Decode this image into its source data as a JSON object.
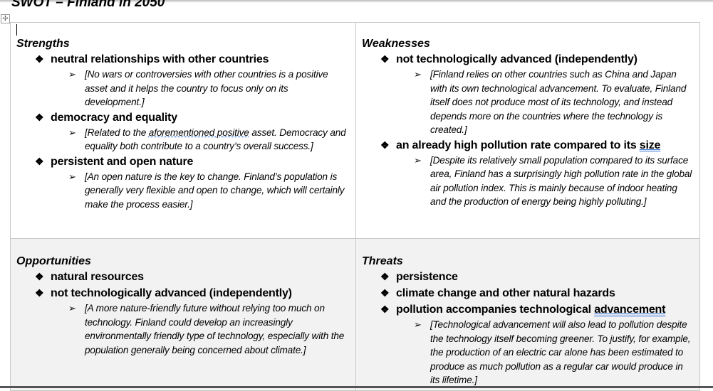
{
  "document": {
    "title": "SWOT – Finland in 2050"
  },
  "icons": {
    "bullet": "four-diamond-bullet",
    "sub_bullet": "arrowhead-bullet",
    "table_move": "move-handle-icon"
  },
  "swot": [
    {
      "heading": "Strengths",
      "items": [
        {
          "label": "neutral relationships with other countries",
          "details": [
            "[No wars or controversies with other countries is a positive asset and it helps the country to focus only on its development.]"
          ]
        },
        {
          "label": "democracy and equality",
          "details_parts": [
            "[Related to the ",
            "aforementioned positive",
            " asset. Democracy and equality both contribute to a country’s overall success.]"
          ]
        },
        {
          "label": "persistent and open nature",
          "details": [
            "[An open nature is the key to change. Finland’s population is generally very flexible and open to change, which will certainly make the process easier.]"
          ]
        }
      ]
    },
    {
      "heading": "Weaknesses",
      "items": [
        {
          "label": "not technologically advanced (independently)",
          "details": [
            "[Finland relies on other countries such as China and Japan with its own technological advancement. To evaluate, Finland itself does not produce most of its technology, and instead depends more on the countries where the technology is created.]"
          ]
        },
        {
          "label_parts": [
            "an already high pollution rate compared to its ",
            "size"
          ],
          "details": [
            "[Despite its relatively small population compared to its surface area, Finland has a surprisingly high pollution rate in the global air pollution index. This is mainly because of indoor heating and the production of energy being highly polluting.]"
          ]
        }
      ]
    },
    {
      "heading": "Opportunities",
      "items": [
        {
          "label": "natural resources"
        },
        {
          "label": "not technologically advanced (independently)",
          "details": [
            "[A more nature-friendly future without relying too much on technology. Finland could develop an increasingly environmentally friendly type of technology, especially with the population generally being concerned about climate.]"
          ]
        }
      ]
    },
    {
      "heading": "Threats",
      "items": [
        {
          "label": "persistence"
        },
        {
          "label": "climate change and other natural hazards"
        },
        {
          "label_parts": [
            "pollution accompanies technological ",
            "advancement"
          ],
          "details": [
            "[Technological advancement will also lead to pollution despite the technology itself becoming greener. To justify, for example, the production of an electric car alone has been estimated to produce as much pollution as a regular car would produce in its lifetime.]"
          ]
        }
      ]
    }
  ]
}
